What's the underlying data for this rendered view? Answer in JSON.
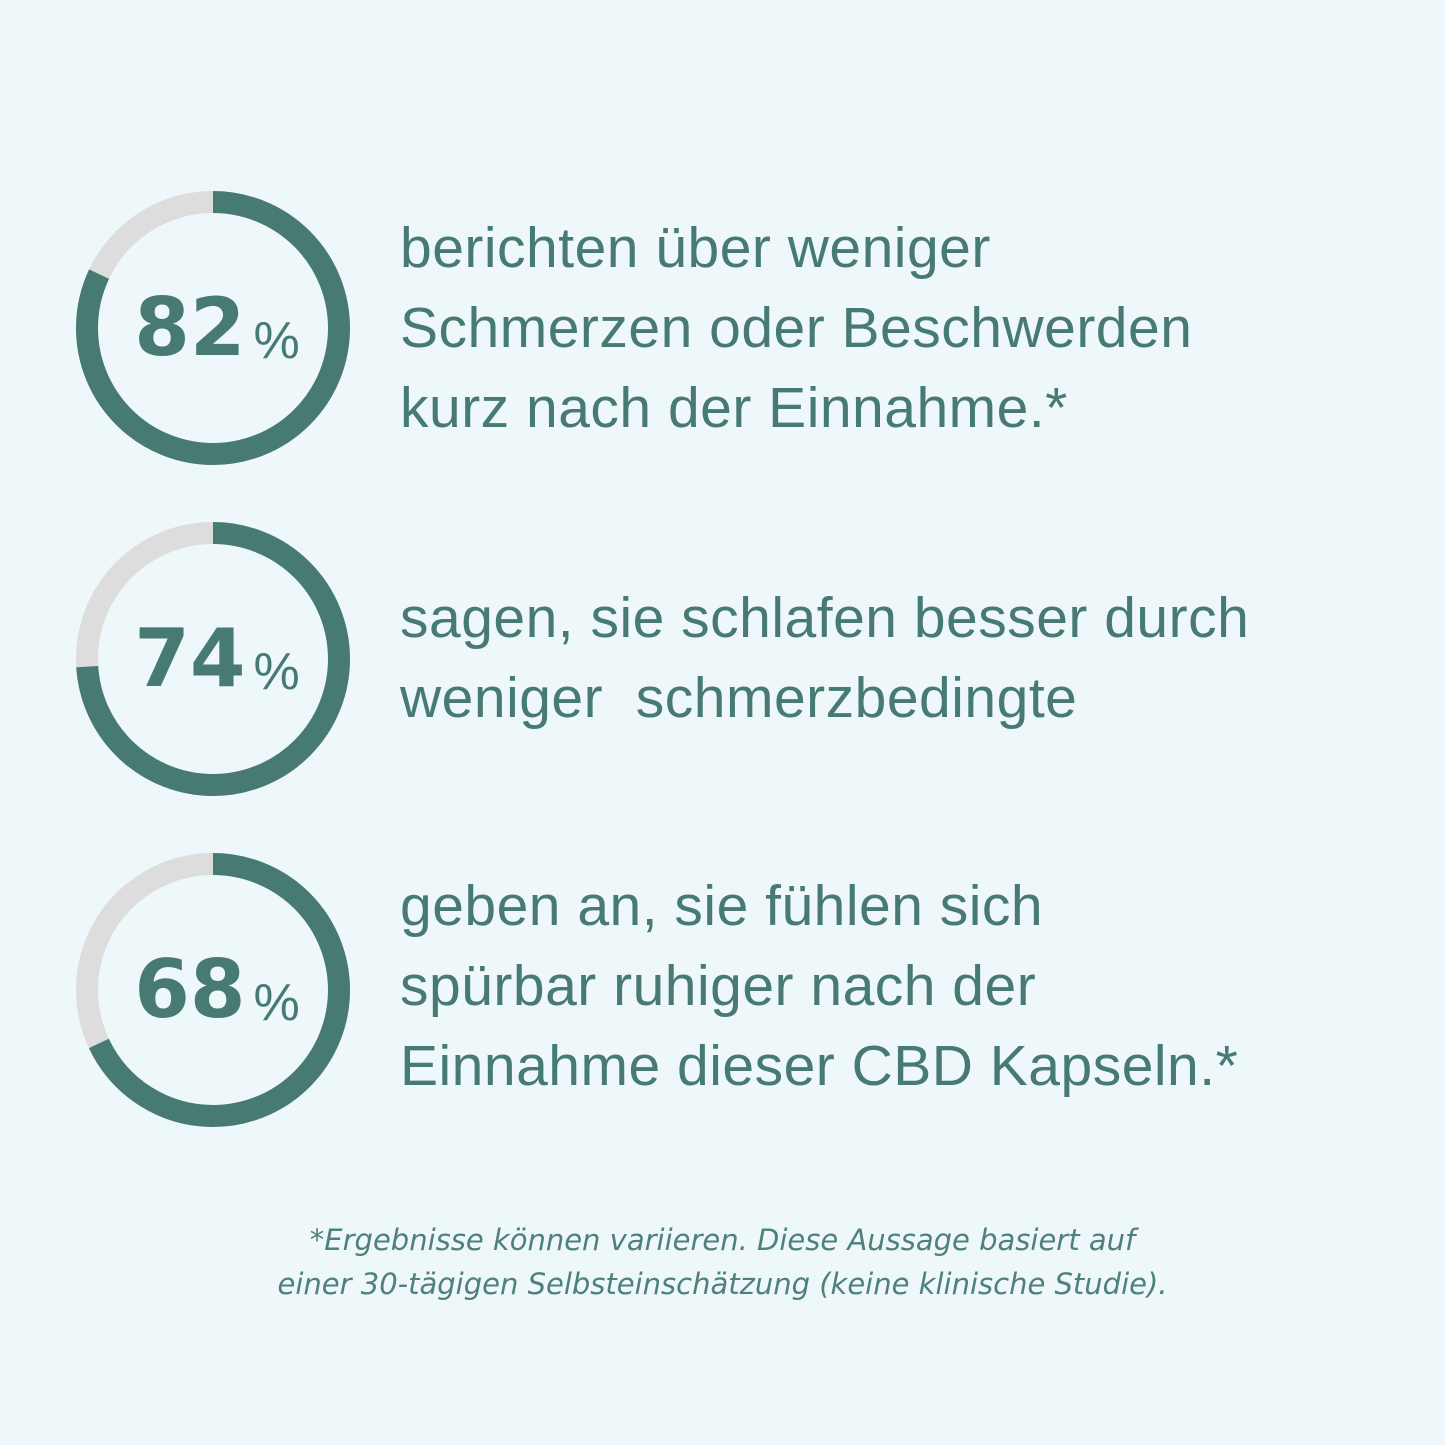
{
  "colors": {
    "accent": "#467a72",
    "track": "#dddddd",
    "background": "#eef7fa"
  },
  "chart_data": {
    "type": "pie",
    "variant": "progress-ring",
    "items": [
      {
        "value": 82,
        "label": "82",
        "unit": "%",
        "lines": [
          "berichten über weniger",
          "Schmerzen oder Beschwerden",
          "kurz nach der Einnahme.*"
        ]
      },
      {
        "value": 74,
        "label": "74",
        "unit": "%",
        "lines": [
          "sagen, sie schlafen besser durch",
          "weniger  schmerzbedingte"
        ]
      },
      {
        "value": 68,
        "label": "68",
        "unit": "%",
        "lines": [
          "geben an, sie fühlen sich",
          "spürbar ruhiger nach der",
          "Einnahme dieser CBD Kapseln.*"
        ]
      }
    ]
  },
  "footnote": [
    "*Ergebnisse können variieren. Diese Aussage basiert auf",
    "einer 30-tägigen Selbsteinschätzung (keine klinische Studie)."
  ]
}
